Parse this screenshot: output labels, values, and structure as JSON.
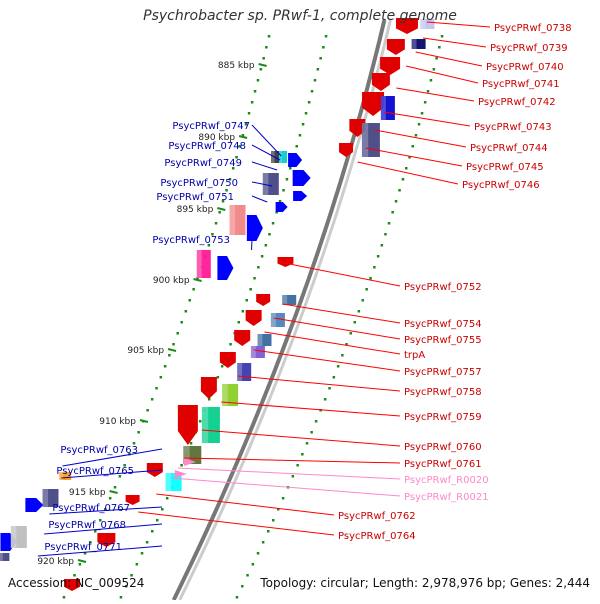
{
  "title": "Psychrobacter sp. PRwf-1, complete genome",
  "accession": "Accession: NC_009524",
  "topology": "Topology: circular; Length: 2,978,976 bp; Genes: 2,444",
  "ticks": [
    "885 kbp",
    "890 kbp",
    "895 kbp",
    "900 kbp",
    "905 kbp",
    "910 kbp",
    "915 kbp",
    "920 kbp"
  ],
  "colors": {
    "plus_strand": "#e00000",
    "minus_strand": "#0000ff",
    "rna": "#ff88cc",
    "axis": "#888888",
    "tick_dots": "#1a8a1a",
    "leader_right": "#ff0000",
    "leader_left": "#0000cc",
    "label_right": "#cc0000",
    "label_left": "#0000aa",
    "label_rna": "#ff88cc"
  },
  "genes_right": [
    {
      "label": "PsycPRwf_0738"
    },
    {
      "label": "PsycPRwf_0739"
    },
    {
      "label": "PsycPRwf_0740"
    },
    {
      "label": "PsycPRwf_0741"
    },
    {
      "label": "PsycPRwf_0742"
    },
    {
      "label": "PsycPRwf_0743"
    },
    {
      "label": "PsycPRwf_0744"
    },
    {
      "label": "PsycPRwf_0745"
    },
    {
      "label": "PsycPRwf_0746"
    },
    {
      "label": "PsycPRwf_0752"
    },
    {
      "label": "PsycPRwf_0754"
    },
    {
      "label": "PsycPRwf_0755"
    },
    {
      "label": "trpA"
    },
    {
      "label": "PsycPRwf_0757"
    },
    {
      "label": "PsycPRwf_0758"
    },
    {
      "label": "PsycPRwf_0759"
    },
    {
      "label": "PsycPRwf_0760"
    },
    {
      "label": "PsycPRwf_0761"
    },
    {
      "label": "PsycPRwf_R0020"
    },
    {
      "label": "PsycPRwf_R0021"
    },
    {
      "label": "PsycPRwf_0762"
    },
    {
      "label": "PsycPRwf_0764"
    }
  ],
  "genes_left": [
    {
      "label": "PsycPRwf_0747"
    },
    {
      "label": "PsycPRwf_0748"
    },
    {
      "label": "PsycPRwf_0749"
    },
    {
      "label": "PsycPRwf_0750"
    },
    {
      "label": "PsycPRwf_0751"
    },
    {
      "label": "PsycPRwf_0753"
    },
    {
      "label": "PsycPRwf_0763"
    },
    {
      "label": "PsycPRwf_0765"
    },
    {
      "label": "PsycPRwf_0767"
    },
    {
      "label": "PsycPRwf_0768"
    },
    {
      "label": "PsycPRwf_0771"
    }
  ]
}
